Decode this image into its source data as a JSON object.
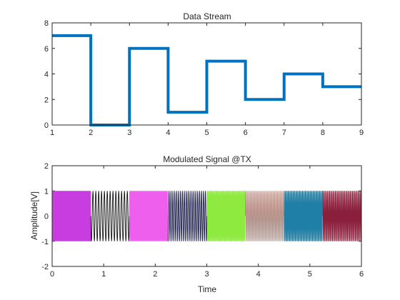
{
  "chart_data": [
    {
      "type": "line",
      "subtype": "stairs",
      "title": "Data Stream",
      "xlabel": "",
      "ylabel": "",
      "xlim": [
        1,
        9
      ],
      "ylim": [
        0,
        8
      ],
      "xticks": [
        1,
        2,
        3,
        4,
        5,
        6,
        7,
        8,
        9
      ],
      "yticks": [
        0,
        2,
        4,
        6,
        8
      ],
      "grid": false,
      "color": "#0072BD",
      "series": [
        {
          "x": [
            1,
            2,
            3,
            4,
            5,
            6,
            7,
            8,
            9
          ],
          "y": [
            7,
            0,
            6,
            1,
            5,
            2,
            4,
            3,
            3
          ]
        }
      ]
    },
    {
      "type": "line",
      "title": "Modulated Signal @TX",
      "xlabel": "Time",
      "ylabel": "Amplitude[V]",
      "xlim": [
        0,
        6
      ],
      "ylim": [
        -2,
        2
      ],
      "xticks": [
        0,
        1,
        2,
        3,
        4,
        5,
        6
      ],
      "yticks": [
        -2,
        -1,
        0,
        1,
        2
      ],
      "grid": false,
      "amplitude": 1,
      "segments": [
        {
          "symbol": 7,
          "t_start": 0.0,
          "t_end": 0.75,
          "color": "#C83DE0"
        },
        {
          "symbol": 0,
          "t_start": 0.75,
          "t_end": 1.5,
          "color": "#111111"
        },
        {
          "symbol": 6,
          "t_start": 1.5,
          "t_end": 2.25,
          "color": "#EE5FEE"
        },
        {
          "symbol": 1,
          "t_start": 2.25,
          "t_end": 3.0,
          "color": "#1A1A4A"
        },
        {
          "symbol": 5,
          "t_start": 3.0,
          "t_end": 3.75,
          "color": "#8EEA3E"
        },
        {
          "symbol": 2,
          "t_start": 3.75,
          "t_end": 4.5,
          "color": "#B08A80"
        },
        {
          "symbol": 4,
          "t_start": 4.5,
          "t_end": 5.25,
          "color": "#1F7FA6"
        },
        {
          "symbol": 3,
          "t_start": 5.25,
          "t_end": 6.0,
          "color": "#8A1F3C"
        }
      ]
    }
  ]
}
